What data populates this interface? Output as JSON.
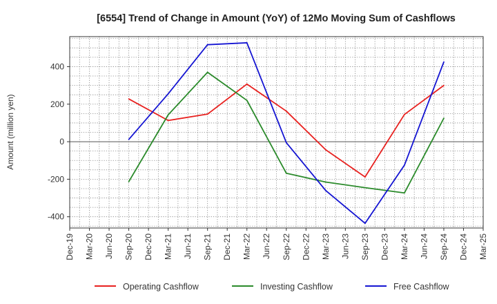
{
  "chart_data": {
    "type": "line",
    "title": "[6554]  Trend of Change in Amount (YoY) of 12Mo Moving Sum of Cashflows",
    "xlabel": "",
    "ylabel": "Amount (million yen)",
    "ylim": [
      -460,
      560
    ],
    "yticks": [
      -400,
      -200,
      0,
      200,
      400
    ],
    "grid": true,
    "legend_position": "bottom",
    "categories": [
      "Dec-19",
      "Mar-20",
      "Jun-20",
      "Sep-20",
      "Dec-20",
      "Mar-21",
      "Jun-21",
      "Sep-21",
      "Dec-21",
      "Mar-22",
      "Jun-22",
      "Sep-22",
      "Dec-22",
      "Mar-23",
      "Jun-23",
      "Sep-23",
      "Dec-23",
      "Mar-24",
      "Jun-24",
      "Sep-24",
      "Dec-24",
      "Mar-25"
    ],
    "series": [
      {
        "name": "Operating Cashflow",
        "color": "#e8201e",
        "values": [
          null,
          null,
          null,
          228,
          null,
          113,
          null,
          147,
          null,
          307,
          null,
          163,
          null,
          -43,
          null,
          -188,
          null,
          145,
          null,
          300,
          null,
          null
        ]
      },
      {
        "name": "Investing Cashflow",
        "color": "#2a8a2a",
        "values": [
          null,
          null,
          null,
          -213,
          null,
          143,
          null,
          370,
          null,
          220,
          null,
          -168,
          null,
          -215,
          null,
          -245,
          null,
          -273,
          null,
          125,
          null,
          null
        ]
      },
      {
        "name": "Free Cashflow",
        "color": "#1414d2",
        "values": [
          null,
          null,
          null,
          12,
          null,
          255,
          null,
          517,
          null,
          527,
          null,
          -5,
          null,
          -260,
          null,
          -435,
          null,
          -125,
          null,
          425,
          null,
          null
        ]
      }
    ]
  }
}
